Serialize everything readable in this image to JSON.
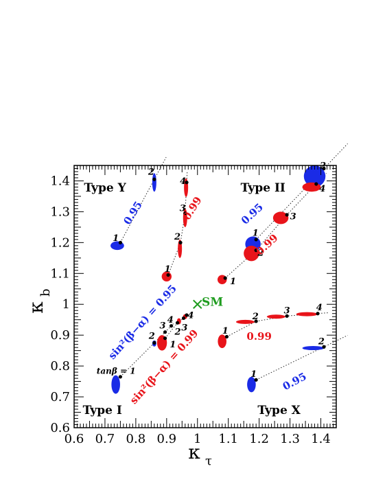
{
  "chart_data": {
    "type": "scatter",
    "xlabel_main": "κ",
    "xlabel_sub": "τ",
    "ylabel_main": "κ",
    "ylabel_sub": "b",
    "xlim": [
      0.6,
      1.45
    ],
    "ylim": [
      0.6,
      1.45
    ],
    "x_ticks": [
      0.6,
      0.7,
      0.8,
      0.9,
      1.0,
      1.1,
      1.2,
      1.3,
      1.4
    ],
    "y_ticks": [
      0.6,
      0.7,
      0.8,
      0.9,
      1.0,
      1.1,
      1.2,
      1.3,
      1.4
    ],
    "x_tick_labels": [
      "0.6",
      "0.7",
      "0.8",
      "0.9",
      "1",
      "1.1",
      "1.2",
      "1.3",
      "1.4"
    ],
    "y_tick_labels": [
      "0.6",
      "0.7",
      "0.8",
      "0.9",
      "1",
      "1.1",
      "1.2",
      "1.3",
      "1.4"
    ],
    "colors": {
      "blue": "#1a2be6",
      "red": "#e8141a",
      "green": "#1f9c1f",
      "black": "#000000"
    },
    "sm_point": {
      "x": 1.0,
      "y": 1.0,
      "label": "SM"
    },
    "type_labels": [
      {
        "text": "Type Y",
        "x": 0.665,
        "y": 1.37
      },
      {
        "text": "Type II",
        "x": 1.145,
        "y": 1.37
      },
      {
        "text": "Type I",
        "x": 0.65,
        "y": 0.65
      },
      {
        "text": "Type X",
        "x": 1.195,
        "y": 0.65
      }
    ],
    "series": [
      {
        "model": "Type I",
        "color": "blue",
        "sin2": "sin²(β−α) = 0.95",
        "tanb_points": [
          {
            "x": 0.75,
            "y": 0.765,
            "label": "tanβ = 1"
          },
          {
            "x": 0.86,
            "y": 0.875,
            "label": "2"
          },
          {
            "x": 0.895,
            "y": 0.91,
            "label": "3"
          },
          {
            "x": 0.915,
            "y": 0.93,
            "label": "4"
          }
        ],
        "blobs": [
          [
            0.735,
            0.74,
            0.014,
            0.03
          ],
          [
            0.86,
            0.873,
            0.006,
            0.01
          ]
        ]
      },
      {
        "model": "Type I",
        "color": "red",
        "sin2": "sin²(β−α) = 0.99",
        "tanb_points": [
          {
            "x": 0.895,
            "y": 0.89,
            "label": "1"
          },
          {
            "x": 0.935,
            "y": 0.94,
            "label": "2"
          },
          {
            "x": 0.955,
            "y": 0.955,
            "label": "3"
          },
          {
            "x": 0.965,
            "y": 0.965,
            "label": "4"
          }
        ],
        "blobs": [
          [
            0.885,
            0.875,
            0.016,
            0.025
          ],
          [
            0.94,
            0.945,
            0.006,
            0.01
          ],
          [
            0.96,
            0.96,
            0.006,
            0.008
          ]
        ]
      },
      {
        "model": "Type Y",
        "color": "blue",
        "sin2": "0.95",
        "tanb_points": [
          {
            "x": 0.75,
            "y": 1.2,
            "label": "1"
          },
          {
            "x": 0.86,
            "y": 1.405,
            "label": "2"
          }
        ],
        "blobs": [
          [
            0.74,
            1.19,
            0.022,
            0.014
          ],
          [
            0.86,
            1.395,
            0.006,
            0.03
          ]
        ]
      },
      {
        "model": "Type Y",
        "color": "red",
        "sin2": "0.99",
        "tanb_points": [
          {
            "x": 0.905,
            "y": 1.095,
            "label": "1"
          },
          {
            "x": 0.945,
            "y": 1.2,
            "label": "2"
          },
          {
            "x": 0.96,
            "y": 1.295,
            "label": "3"
          },
          {
            "x": 0.965,
            "y": 1.395,
            "label": "4"
          }
        ],
        "blobs": [
          [
            0.9,
            1.09,
            0.016,
            0.016
          ],
          [
            0.943,
            1.18,
            0.006,
            0.03
          ],
          [
            0.96,
            1.28,
            0.005,
            0.03
          ],
          [
            0.963,
            1.378,
            0.005,
            0.03
          ]
        ]
      },
      {
        "model": "Type II",
        "color": "blue",
        "sin2": "0.95",
        "tanb_points": [
          {
            "x": 1.19,
            "y": 1.21,
            "label": "1"
          },
          {
            "x": 1.41,
            "y": 1.44,
            "label": "2"
          }
        ],
        "blobs": [
          [
            1.18,
            1.195,
            0.025,
            0.025
          ],
          [
            1.38,
            1.415,
            0.035,
            0.035
          ]
        ]
      },
      {
        "model": "Type II",
        "color": "red",
        "sin2": "0.99",
        "tanb_points": [
          {
            "x": 1.09,
            "y": 1.085,
            "label": "1"
          },
          {
            "x": 1.19,
            "y": 1.175,
            "label": "2"
          },
          {
            "x": 1.29,
            "y": 1.29,
            "label": "3"
          },
          {
            "x": 1.385,
            "y": 1.39,
            "label": "4"
          }
        ],
        "blobs": [
          [
            1.08,
            1.08,
            0.015,
            0.015
          ],
          [
            1.175,
            1.165,
            0.025,
            0.025
          ],
          [
            1.27,
            1.28,
            0.025,
            0.02
          ],
          [
            1.37,
            1.38,
            0.03,
            0.015
          ]
        ]
      },
      {
        "model": "Type X",
        "color": "blue",
        "sin2": "0.95",
        "tanb_points": [
          {
            "x": 1.19,
            "y": 0.755,
            "label": "1"
          },
          {
            "x": 1.41,
            "y": 0.862,
            "label": "2"
          }
        ],
        "blobs": [
          [
            1.175,
            0.74,
            0.014,
            0.025
          ],
          [
            1.375,
            0.858,
            0.035,
            0.006
          ]
        ]
      },
      {
        "model": "Type X",
        "color": "red",
        "sin2": "0.99",
        "tanb_points": [
          {
            "x": 1.095,
            "y": 0.895,
            "label": "1"
          },
          {
            "x": 1.19,
            "y": 0.945,
            "label": "2"
          },
          {
            "x": 1.29,
            "y": 0.962,
            "label": "3"
          },
          {
            "x": 1.39,
            "y": 0.97,
            "label": "4"
          }
        ],
        "blobs": [
          [
            1.08,
            0.88,
            0.014,
            0.022
          ],
          [
            1.155,
            0.943,
            0.03,
            0.005
          ],
          [
            1.255,
            0.96,
            0.03,
            0.004
          ],
          [
            1.355,
            0.968,
            0.035,
            0.004
          ]
        ]
      }
    ]
  },
  "labels": {
    "sm": "SM",
    "type_y": "Type Y",
    "type_ii": "Type II",
    "type_i": "Type I",
    "type_x": "Type X",
    "sin2_blue": "sin²(β−α) = 0.95",
    "sin2_red": "sin²(β−α) = 0.99",
    "tanb": "tanβ = 1",
    "v095": "0.95",
    "v099": "0.99"
  }
}
